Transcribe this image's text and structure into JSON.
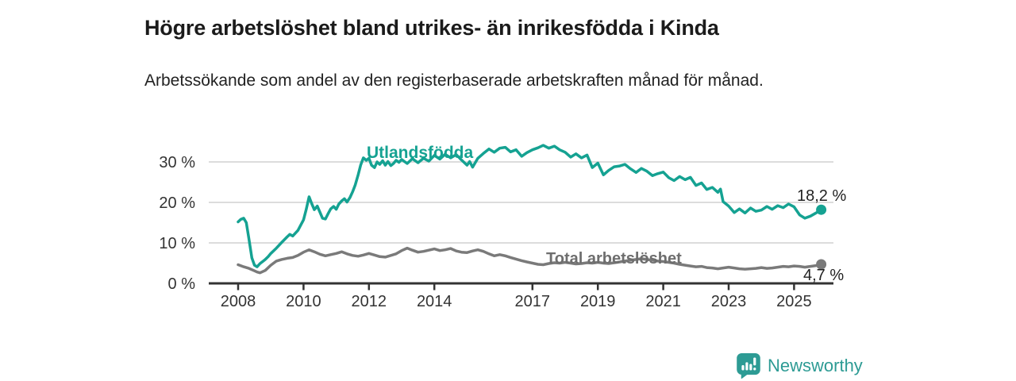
{
  "title": "Högre arbetslöshet bland utrikes- än inrikesfödda i Kinda",
  "subtitle": "Arbetssökande som andel av den registerbaserade arbetskraften månad för månad.",
  "colors": {
    "teal": "#15a292",
    "gray": "#7a7a7a",
    "gray_label": "#6e6e6e",
    "axis": "#333333",
    "grid": "#d0d0d0",
    "text": "#333333",
    "brand_teal": "#2d9b94"
  },
  "branding": {
    "name": "Newsworthy",
    "logo_icon": "bar-chart-speech-bubble-icon"
  },
  "chart_data": {
    "type": "line",
    "title": "Högre arbetslöshet bland utrikes- än inrikesfödda i Kinda",
    "subtitle": "Arbetssökande som andel av den registerbaserade arbetskraften månad för månad.",
    "x_axis": {
      "ticks": [
        2008,
        2010,
        2012,
        2014,
        2017,
        2019,
        2021,
        2023,
        2025
      ],
      "range": [
        2007.1,
        2026.3
      ],
      "grid": false
    },
    "y_axis": {
      "ticks": [
        0,
        10,
        20,
        30
      ],
      "tick_labels": [
        "0 %",
        "10 %",
        "20 %",
        "30 %"
      ],
      "range": [
        0,
        34.7
      ],
      "unit": "%",
      "grid": true
    },
    "legend_position": "inline-labels",
    "series": [
      {
        "name": "Utlandsfödda",
        "color": "#15a292",
        "end_value": 18.2,
        "end_label": "18,2 %",
        "points": [
          [
            2008.0,
            15.2
          ],
          [
            2008.08,
            15.8
          ],
          [
            2008.17,
            16.1
          ],
          [
            2008.25,
            15.0
          ],
          [
            2008.33,
            11.0
          ],
          [
            2008.42,
            6.3
          ],
          [
            2008.5,
            4.5
          ],
          [
            2008.58,
            4.1
          ],
          [
            2008.67,
            4.9
          ],
          [
            2008.75,
            5.4
          ],
          [
            2008.83,
            5.9
          ],
          [
            2008.92,
            6.6
          ],
          [
            2009.0,
            7.4
          ],
          [
            2009.17,
            8.7
          ],
          [
            2009.33,
            10.1
          ],
          [
            2009.5,
            11.5
          ],
          [
            2009.58,
            12.1
          ],
          [
            2009.67,
            11.7
          ],
          [
            2009.83,
            13.1
          ],
          [
            2010.0,
            15.7
          ],
          [
            2010.08,
            18.2
          ],
          [
            2010.17,
            21.4
          ],
          [
            2010.25,
            19.7
          ],
          [
            2010.33,
            18.2
          ],
          [
            2010.42,
            19.1
          ],
          [
            2010.5,
            17.6
          ],
          [
            2010.58,
            16.1
          ],
          [
            2010.67,
            15.9
          ],
          [
            2010.75,
            17.2
          ],
          [
            2010.83,
            18.4
          ],
          [
            2010.92,
            19.0
          ],
          [
            2011.0,
            18.3
          ],
          [
            2011.08,
            19.6
          ],
          [
            2011.17,
            20.4
          ],
          [
            2011.25,
            20.9
          ],
          [
            2011.33,
            20.1
          ],
          [
            2011.42,
            21.2
          ],
          [
            2011.5,
            22.6
          ],
          [
            2011.58,
            24.3
          ],
          [
            2011.67,
            26.8
          ],
          [
            2011.75,
            29.3
          ],
          [
            2011.83,
            31.0
          ],
          [
            2011.92,
            30.4
          ],
          [
            2012.0,
            30.9
          ],
          [
            2012.08,
            29.2
          ],
          [
            2012.17,
            28.6
          ],
          [
            2012.25,
            30.0
          ],
          [
            2012.33,
            29.4
          ],
          [
            2012.42,
            30.3
          ],
          [
            2012.5,
            29.2
          ],
          [
            2012.58,
            30.1
          ],
          [
            2012.67,
            29.1
          ],
          [
            2012.75,
            29.6
          ],
          [
            2012.83,
            30.4
          ],
          [
            2012.92,
            29.9
          ],
          [
            2013.0,
            30.6
          ],
          [
            2013.17,
            29.6
          ],
          [
            2013.33,
            30.8
          ],
          [
            2013.5,
            29.8
          ],
          [
            2013.67,
            30.9
          ],
          [
            2013.83,
            30.2
          ],
          [
            2014.0,
            31.6
          ],
          [
            2014.17,
            30.7
          ],
          [
            2014.33,
            31.9
          ],
          [
            2014.5,
            31.0
          ],
          [
            2014.67,
            31.8
          ],
          [
            2014.83,
            30.5
          ],
          [
            2015.0,
            29.2
          ],
          [
            2015.08,
            30.1
          ],
          [
            2015.17,
            28.7
          ],
          [
            2015.33,
            30.9
          ],
          [
            2015.5,
            32.1
          ],
          [
            2015.67,
            33.2
          ],
          [
            2015.83,
            32.4
          ],
          [
            2016.0,
            33.4
          ],
          [
            2016.17,
            33.6
          ],
          [
            2016.33,
            32.5
          ],
          [
            2016.5,
            33.0
          ],
          [
            2016.67,
            31.4
          ],
          [
            2016.83,
            32.3
          ],
          [
            2017.0,
            33.0
          ],
          [
            2017.17,
            33.5
          ],
          [
            2017.33,
            34.1
          ],
          [
            2017.5,
            33.4
          ],
          [
            2017.67,
            33.9
          ],
          [
            2017.83,
            33.0
          ],
          [
            2018.0,
            32.4
          ],
          [
            2018.17,
            31.2
          ],
          [
            2018.33,
            32.0
          ],
          [
            2018.5,
            31.0
          ],
          [
            2018.67,
            31.7
          ],
          [
            2018.83,
            28.6
          ],
          [
            2019.0,
            29.7
          ],
          [
            2019.17,
            26.8
          ],
          [
            2019.33,
            27.9
          ],
          [
            2019.5,
            28.8
          ],
          [
            2019.67,
            29.0
          ],
          [
            2019.83,
            29.4
          ],
          [
            2020.0,
            28.3
          ],
          [
            2020.17,
            27.4
          ],
          [
            2020.33,
            28.4
          ],
          [
            2020.5,
            27.7
          ],
          [
            2020.67,
            26.6
          ],
          [
            2020.83,
            27.1
          ],
          [
            2021.0,
            27.5
          ],
          [
            2021.17,
            26.1
          ],
          [
            2021.33,
            25.4
          ],
          [
            2021.5,
            26.4
          ],
          [
            2021.67,
            25.6
          ],
          [
            2021.83,
            26.2
          ],
          [
            2022.0,
            24.2
          ],
          [
            2022.17,
            24.8
          ],
          [
            2022.33,
            23.2
          ],
          [
            2022.5,
            23.7
          ],
          [
            2022.67,
            22.5
          ],
          [
            2022.75,
            23.3
          ],
          [
            2022.83,
            20.2
          ],
          [
            2023.0,
            19.1
          ],
          [
            2023.17,
            17.5
          ],
          [
            2023.33,
            18.4
          ],
          [
            2023.5,
            17.4
          ],
          [
            2023.67,
            18.6
          ],
          [
            2023.83,
            17.8
          ],
          [
            2024.0,
            18.1
          ],
          [
            2024.17,
            19.0
          ],
          [
            2024.33,
            18.3
          ],
          [
            2024.5,
            19.2
          ],
          [
            2024.67,
            18.7
          ],
          [
            2024.83,
            19.6
          ],
          [
            2025.0,
            18.9
          ],
          [
            2025.17,
            16.9
          ],
          [
            2025.33,
            16.1
          ],
          [
            2025.5,
            16.6
          ],
          [
            2025.67,
            17.4
          ],
          [
            2025.83,
            18.2
          ]
        ]
      },
      {
        "name": "Total arbetslöshet",
        "color": "#7a7a7a",
        "end_value": 4.7,
        "end_label": "4,7 %",
        "points": [
          [
            2008.0,
            4.6
          ],
          [
            2008.17,
            4.1
          ],
          [
            2008.33,
            3.7
          ],
          [
            2008.5,
            3.1
          ],
          [
            2008.58,
            2.8
          ],
          [
            2008.67,
            2.6
          ],
          [
            2008.83,
            3.2
          ],
          [
            2009.0,
            4.5
          ],
          [
            2009.17,
            5.5
          ],
          [
            2009.33,
            5.9
          ],
          [
            2009.5,
            6.2
          ],
          [
            2009.67,
            6.4
          ],
          [
            2009.83,
            6.9
          ],
          [
            2010.0,
            7.7
          ],
          [
            2010.17,
            8.3
          ],
          [
            2010.33,
            7.8
          ],
          [
            2010.5,
            7.2
          ],
          [
            2010.67,
            6.8
          ],
          [
            2010.83,
            7.1
          ],
          [
            2011.0,
            7.4
          ],
          [
            2011.17,
            7.8
          ],
          [
            2011.33,
            7.3
          ],
          [
            2011.5,
            6.9
          ],
          [
            2011.67,
            6.7
          ],
          [
            2011.83,
            7.0
          ],
          [
            2012.0,
            7.4
          ],
          [
            2012.17,
            7.0
          ],
          [
            2012.33,
            6.6
          ],
          [
            2012.5,
            6.5
          ],
          [
            2012.67,
            6.9
          ],
          [
            2012.83,
            7.3
          ],
          [
            2013.0,
            8.1
          ],
          [
            2013.17,
            8.7
          ],
          [
            2013.33,
            8.2
          ],
          [
            2013.5,
            7.7
          ],
          [
            2013.67,
            7.9
          ],
          [
            2013.83,
            8.2
          ],
          [
            2014.0,
            8.5
          ],
          [
            2014.17,
            8.1
          ],
          [
            2014.33,
            8.3
          ],
          [
            2014.5,
            8.6
          ],
          [
            2014.67,
            8.0
          ],
          [
            2014.83,
            7.7
          ],
          [
            2015.0,
            7.6
          ],
          [
            2015.17,
            8.0
          ],
          [
            2015.33,
            8.3
          ],
          [
            2015.5,
            7.9
          ],
          [
            2015.67,
            7.3
          ],
          [
            2015.83,
            6.8
          ],
          [
            2016.0,
            7.1
          ],
          [
            2016.17,
            6.8
          ],
          [
            2016.33,
            6.4
          ],
          [
            2016.5,
            6.0
          ],
          [
            2016.67,
            5.6
          ],
          [
            2016.83,
            5.3
          ],
          [
            2017.0,
            5.0
          ],
          [
            2017.17,
            4.7
          ],
          [
            2017.33,
            4.6
          ],
          [
            2017.5,
            4.9
          ],
          [
            2017.67,
            5.1
          ],
          [
            2017.83,
            5.0
          ],
          [
            2018.0,
            5.2
          ],
          [
            2018.17,
            5.0
          ],
          [
            2018.33,
            4.8
          ],
          [
            2018.5,
            4.9
          ],
          [
            2018.67,
            5.1
          ],
          [
            2018.83,
            5.0
          ],
          [
            2019.0,
            5.2
          ],
          [
            2019.17,
            5.0
          ],
          [
            2019.33,
            4.9
          ],
          [
            2019.5,
            5.1
          ],
          [
            2019.67,
            5.3
          ],
          [
            2019.83,
            5.5
          ],
          [
            2020.0,
            5.7
          ],
          [
            2020.17,
            5.9
          ],
          [
            2020.33,
            6.1
          ],
          [
            2020.5,
            5.9
          ],
          [
            2020.67,
            5.7
          ],
          [
            2020.83,
            5.5
          ],
          [
            2021.0,
            5.4
          ],
          [
            2021.17,
            5.2
          ],
          [
            2021.33,
            5.0
          ],
          [
            2021.5,
            4.7
          ],
          [
            2021.67,
            4.5
          ],
          [
            2021.83,
            4.3
          ],
          [
            2022.0,
            4.1
          ],
          [
            2022.17,
            4.2
          ],
          [
            2022.33,
            3.9
          ],
          [
            2022.5,
            3.8
          ],
          [
            2022.67,
            3.6
          ],
          [
            2022.83,
            3.8
          ],
          [
            2023.0,
            4.0
          ],
          [
            2023.17,
            3.8
          ],
          [
            2023.33,
            3.6
          ],
          [
            2023.5,
            3.5
          ],
          [
            2023.67,
            3.6
          ],
          [
            2023.83,
            3.7
          ],
          [
            2024.0,
            3.9
          ],
          [
            2024.17,
            3.7
          ],
          [
            2024.33,
            3.8
          ],
          [
            2024.5,
            4.0
          ],
          [
            2024.67,
            4.2
          ],
          [
            2024.83,
            4.1
          ],
          [
            2025.0,
            4.3
          ],
          [
            2025.17,
            4.2
          ],
          [
            2025.33,
            4.0
          ],
          [
            2025.5,
            4.2
          ],
          [
            2025.67,
            4.4
          ],
          [
            2025.83,
            4.7
          ]
        ]
      }
    ]
  }
}
